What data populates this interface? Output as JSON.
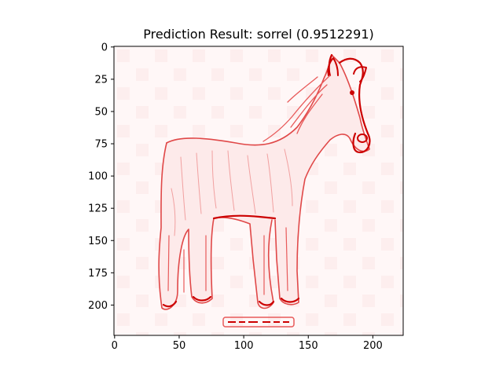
{
  "chart_data": {
    "type": "heatmap",
    "title": "Prediction Result: sorrel (0.9512291)",
    "prediction": {
      "label": "sorrel",
      "confidence": 0.9512291
    },
    "xlabel": "",
    "ylabel": "",
    "xlim": [
      -0.5,
      223.5
    ],
    "ylim": [
      223.5,
      -0.5
    ],
    "x_ticks": [
      0,
      50,
      100,
      150,
      200
    ],
    "y_ticks": [
      0,
      25,
      50,
      75,
      100,
      125,
      150,
      175,
      200
    ],
    "image_size": [
      224,
      224
    ],
    "colormap": "Reds",
    "grid": false,
    "subject": "horse saliency map",
    "caption_watermark": "blurred text near bottom"
  },
  "colors": {
    "saliency_strong": "#cc0000",
    "saliency_mid": "#e85a5a",
    "saliency_light": "#f7c8c8",
    "background_tint": "#fff5f5",
    "axis": "#000000"
  }
}
